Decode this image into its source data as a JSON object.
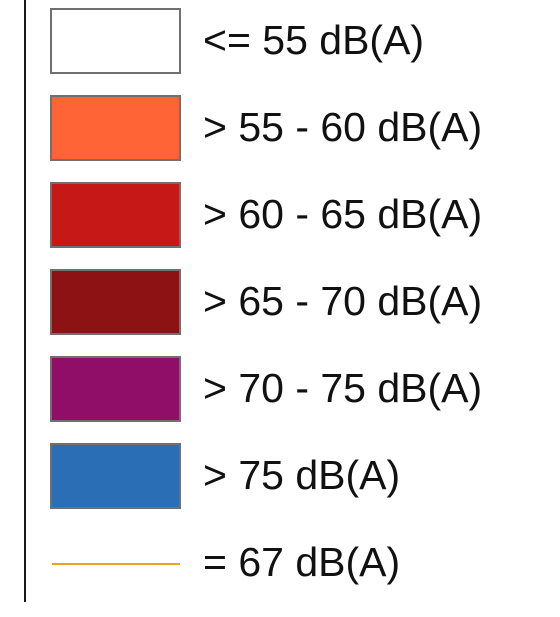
{
  "legend": {
    "items": [
      {
        "kind": "box",
        "color": "#ffffff",
        "label": "<= 55 dB(A)"
      },
      {
        "kind": "box",
        "color": "#fe6436",
        "label": "> 55 - 60 dB(A)"
      },
      {
        "kind": "box",
        "color": "#c61816",
        "label": "> 60 - 65 dB(A)"
      },
      {
        "kind": "box",
        "color": "#8c1214",
        "label": "> 65 - 70 dB(A)"
      },
      {
        "kind": "box",
        "color": "#900d68",
        "label": "> 70 - 75 dB(A)"
      },
      {
        "kind": "box",
        "color": "#2a6fb6",
        "label": "> 75 dB(A)"
      },
      {
        "kind": "line",
        "color": "#f0a020",
        "label": "= 67 dB(A)"
      }
    ]
  }
}
